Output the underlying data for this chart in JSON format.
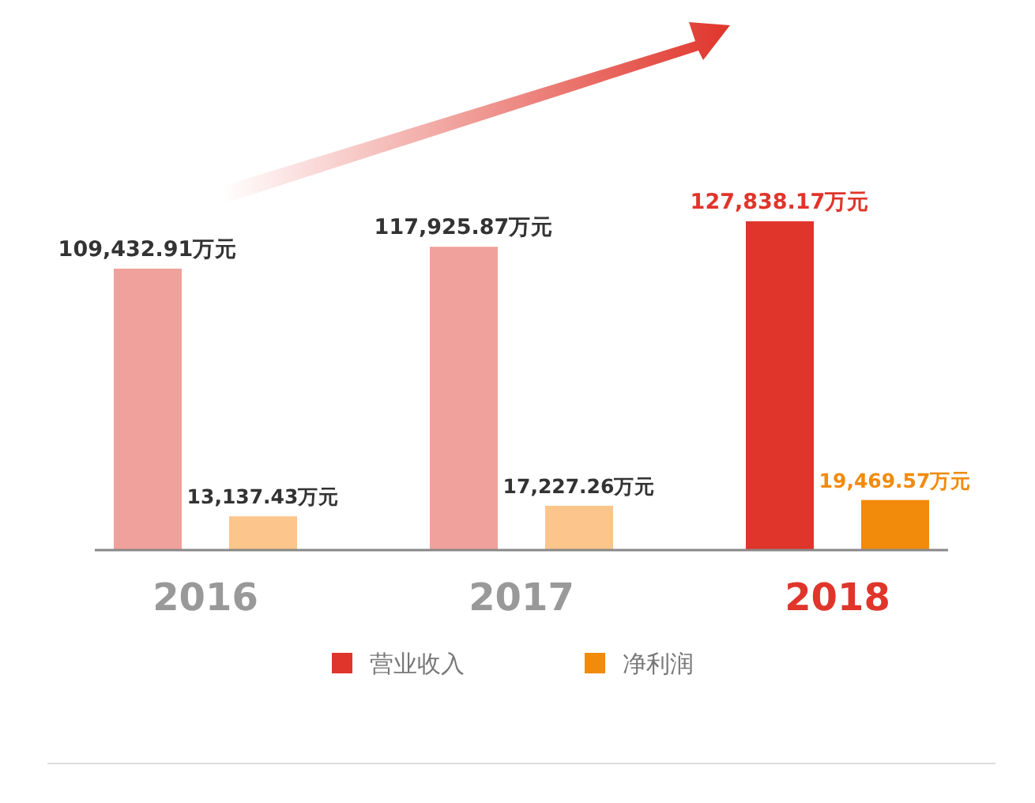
{
  "chart_data": {
    "type": "bar",
    "categories": [
      "2016",
      "2017",
      "2018"
    ],
    "series": [
      {
        "name": "营业收入",
        "color": "#e0352b",
        "colors": [
          "#f0a19b",
          "#f0a19b",
          "#e0352b"
        ],
        "values": [
          109432.91,
          117925.87,
          127838.17
        ],
        "value_labels": [
          "109,432.91万元",
          "117,925.87万元",
          "127,838.17万元"
        ]
      },
      {
        "name": "净利润",
        "color": "#f28a0b",
        "colors": [
          "#fbc58b",
          "#fbc58b",
          "#f28a0b"
        ],
        "values": [
          13137.43,
          17227.26,
          19469.57
        ],
        "value_labels": [
          "13,137.43万元",
          "17,227.26万元",
          "19,469.57万元"
        ]
      }
    ],
    "legend": "bottom"
  }
}
